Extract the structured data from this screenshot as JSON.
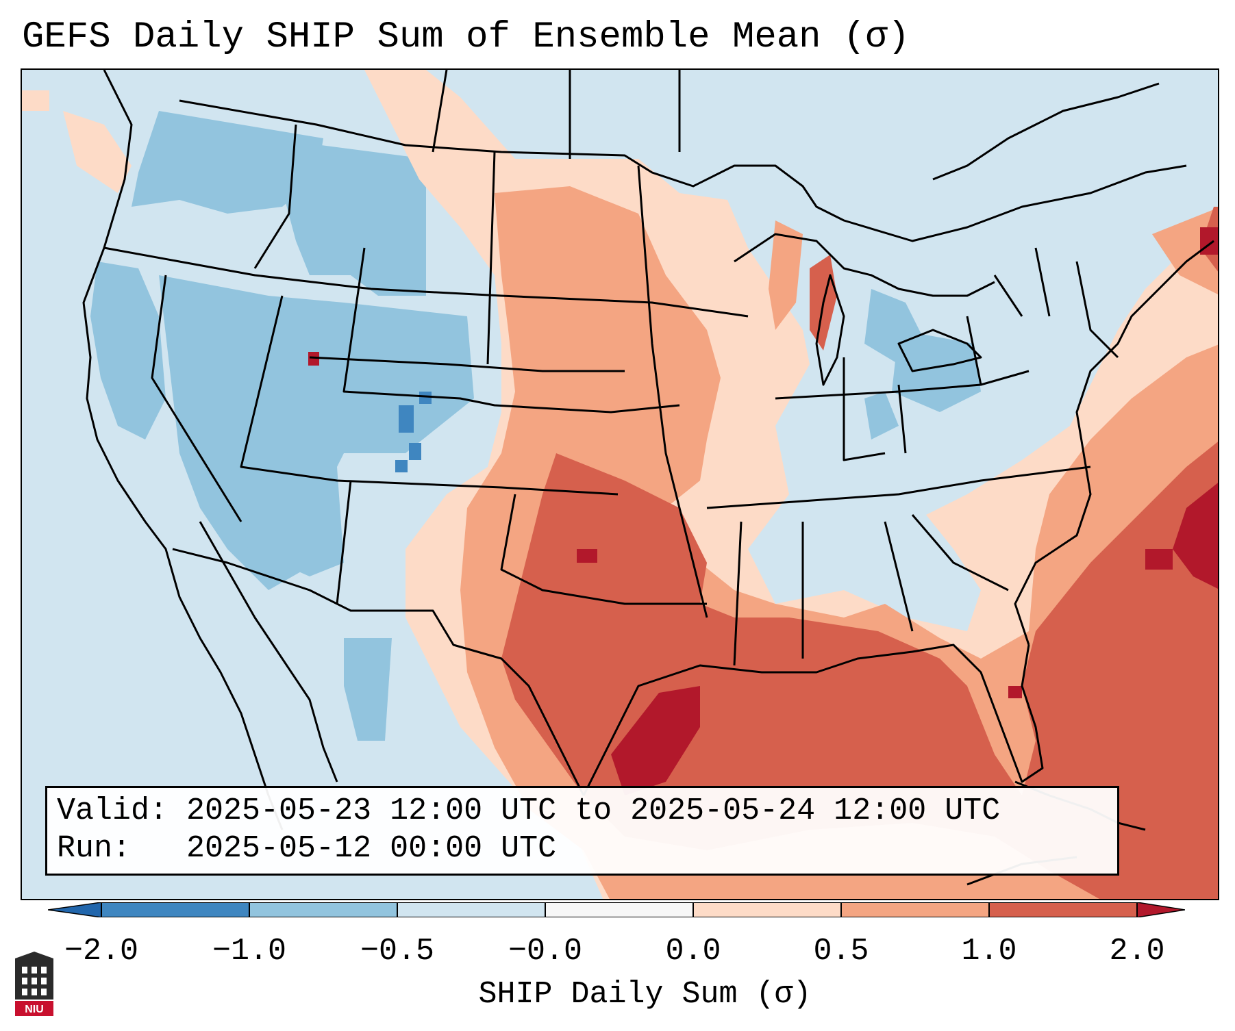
{
  "title": "GEFS Daily SHIP Sum of Ensemble Mean (σ)",
  "valid_line": "Valid: 2025-05-23 12:00 UTC to 2025-05-24 12:00 UTC",
  "run_line": "Run:   2025-05-12 00:00 UTC",
  "colorbar": {
    "label": "SHIP Daily Sum (σ)",
    "ticks": [
      "−2.0",
      "−1.0",
      "−0.5",
      "−0.0",
      "0.0",
      "0.5",
      "1.0",
      "2.0"
    ],
    "colors": [
      "#3f86c0",
      "#92c4de",
      "#d1e5f0",
      "#f7f7f7",
      "#fddbc7",
      "#f4a582",
      "#d6604d",
      "#b2182b"
    ]
  },
  "logo": {
    "text": "NIU"
  },
  "colors": {
    "neutral": "#d1e5f0",
    "weak_blue": "#92c4de",
    "strong_blue": "#3f86c0",
    "weak_red": "#fddbc7",
    "mid_red": "#f4a582",
    "strong_red": "#d6604d",
    "max_red": "#b2182b"
  }
}
